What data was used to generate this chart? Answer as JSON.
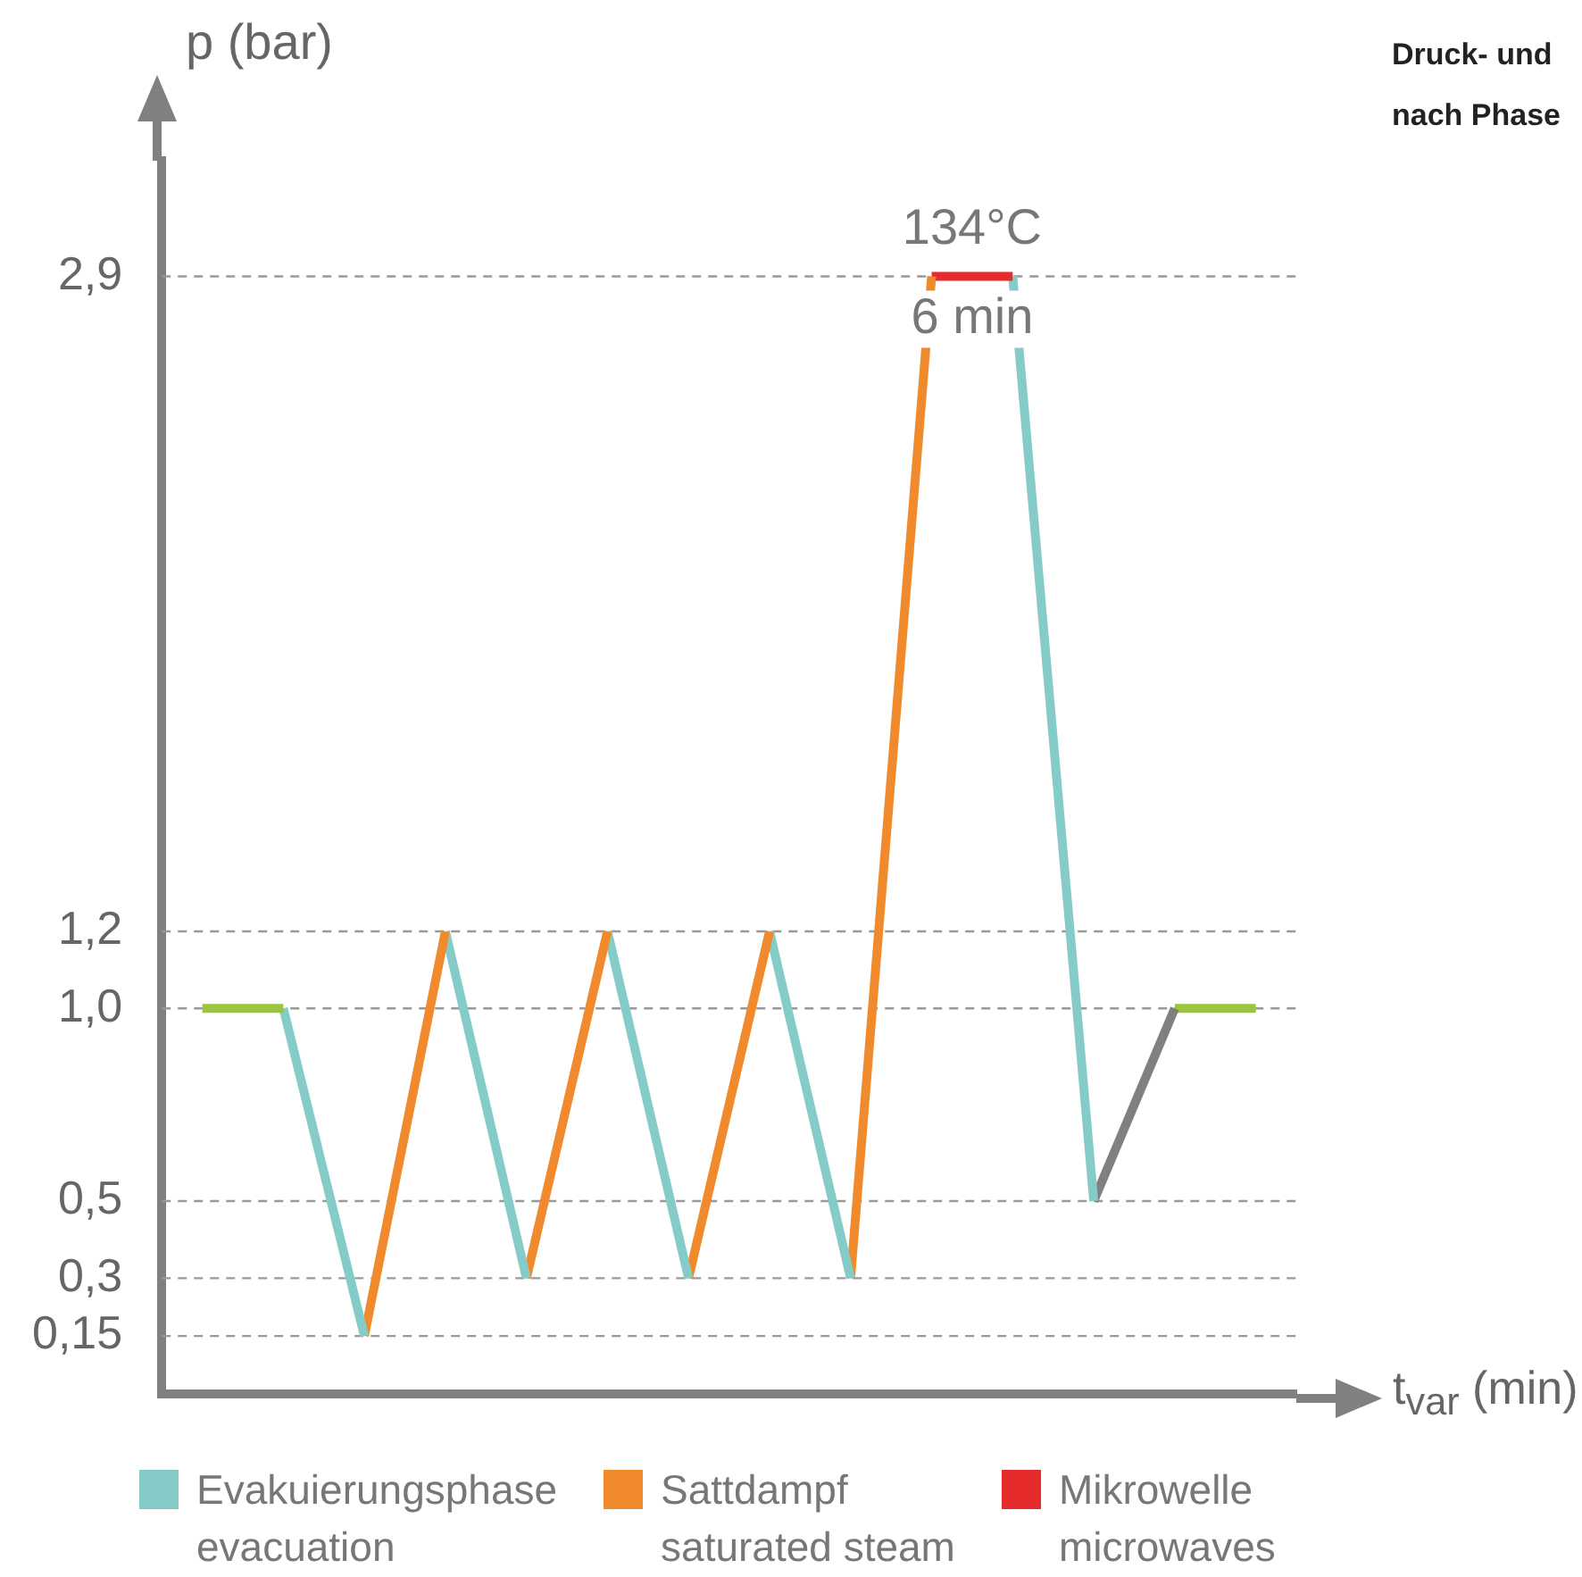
{
  "chart_data": {
    "type": "line",
    "title": "Druck- und",
    "subtitle": "nach Phase",
    "xlabel": "t$_{var}$ (min)",
    "ylabel": "p (bar)",
    "categories": [
      null,
      null,
      null,
      null,
      null,
      null,
      null,
      null,
      null,
      null,
      null,
      null,
      null,
      null
    ],
    "series": [
      {
        "color": "#9bc53d",
        "values": [
          1.0,
          1.0,
          null,
          null,
          null,
          null,
          null,
          null,
          null,
          null,
          null,
          null,
          null,
          null
        ]
      },
      {
        "name": "Evakuierungsphase\nevacuation",
        "color": "#85ccc8",
        "values": [
          null,
          1.0,
          0.15,
          null,
          null,
          null,
          null,
          null,
          null,
          null,
          null,
          null,
          null,
          null
        ]
      },
      {
        "name": "Sattdampf\nsaturated steam",
        "color": "#f08a2c",
        "values": [
          null,
          null,
          0.15,
          1.2,
          null,
          null,
          null,
          null,
          null,
          null,
          null,
          null,
          null,
          null
        ]
      },
      {
        "color": "#85ccc8",
        "values": [
          null,
          null,
          null,
          1.2,
          0.3,
          null,
          null,
          null,
          null,
          null,
          null,
          null,
          null,
          null
        ]
      },
      {
        "color": "#f08a2c",
        "values": [
          null,
          null,
          null,
          null,
          0.3,
          1.2,
          null,
          null,
          null,
          null,
          null,
          null,
          null,
          null
        ]
      },
      {
        "color": "#85ccc8",
        "values": [
          null,
          null,
          null,
          null,
          null,
          1.2,
          0.3,
          null,
          null,
          null,
          null,
          null,
          null,
          null
        ]
      },
      {
        "color": "#f08a2c",
        "values": [
          null,
          null,
          null,
          null,
          null,
          null,
          0.3,
          1.2,
          null,
          null,
          null,
          null,
          null,
          null
        ]
      },
      {
        "color": "#85ccc8",
        "values": [
          null,
          null,
          null,
          null,
          null,
          null,
          null,
          1.2,
          0.3,
          null,
          null,
          null,
          null,
          null
        ]
      },
      {
        "color": "#f08a2c",
        "values": [
          null,
          null,
          null,
          null,
          null,
          null,
          null,
          null,
          0.3,
          2.9,
          null,
          null,
          null,
          null
        ]
      },
      {
        "name": "Mikrowelle\nmicrowaves",
        "color": "#e52b2b",
        "values": [
          null,
          null,
          null,
          null,
          null,
          null,
          null,
          null,
          null,
          2.9,
          2.9,
          null,
          null,
          null
        ]
      },
      {
        "color": "#85ccc8",
        "values": [
          null,
          null,
          null,
          null,
          null,
          null,
          null,
          null,
          null,
          null,
          2.9,
          0.5,
          null,
          null
        ]
      },
      {
        "color": "#808080",
        "values": [
          null,
          null,
          null,
          null,
          null,
          null,
          null,
          null,
          null,
          null,
          null,
          0.5,
          1.0,
          null
        ]
      },
      {
        "color": "#9bc53d",
        "values": [
          null,
          null,
          null,
          null,
          null,
          null,
          null,
          null,
          null,
          null,
          null,
          null,
          1.0,
          1.0
        ]
      }
    ],
    "ylim": [
      0,
      3.2
    ],
    "yticks": [
      {
        "value": 0.15,
        "label": "0,15"
      },
      {
        "value": 0.3,
        "label": "0,3"
      },
      {
        "value": 0.5,
        "label": "0,5"
      },
      {
        "value": 1.0,
        "label": "1,0"
      },
      {
        "value": 1.2,
        "label": "1,2"
      },
      {
        "value": 2.9,
        "label": "2,9"
      }
    ],
    "annotations": [
      {
        "text": "134°C",
        "y": 2.9
      },
      {
        "text": "6 min",
        "y": 2.9
      }
    ],
    "grid": "y",
    "legend": "bottom",
    "tick_labels": "y",
    "marker": "none",
    "line_style": "solid"
  }
}
